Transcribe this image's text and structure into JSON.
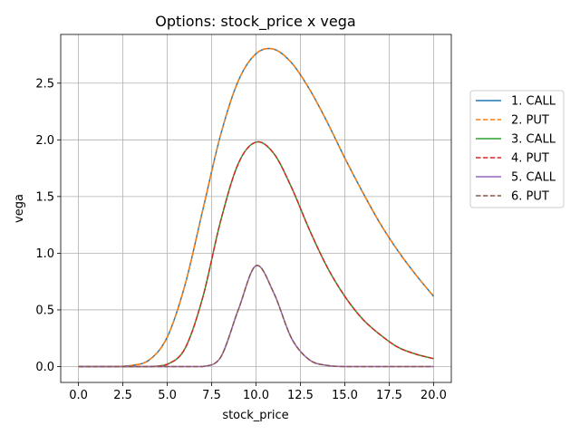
{
  "chart_data": {
    "type": "line",
    "title": "Options: stock_price x vega",
    "xlabel": "stock_price",
    "ylabel": "vega",
    "xlim": [
      -1.0,
      21.0
    ],
    "ylim": [
      -0.14,
      2.93
    ],
    "xticks": [
      0.0,
      2.5,
      5.0,
      7.5,
      10.0,
      12.5,
      15.0,
      17.5,
      20.0
    ],
    "xtick_labels": [
      "0.0",
      "2.5",
      "5.0",
      "7.5",
      "10.0",
      "12.5",
      "15.0",
      "17.5",
      "20.0"
    ],
    "yticks": [
      0.0,
      0.5,
      1.0,
      1.5,
      2.0,
      2.5
    ],
    "ytick_labels": [
      "0.0",
      "0.5",
      "1.0",
      "1.5",
      "2.0",
      "2.5"
    ],
    "grid": true,
    "legend_position": "right, outside plot",
    "x": [
      0,
      1,
      2,
      3,
      4,
      5,
      6,
      7,
      8,
      9,
      10,
      11,
      12,
      13,
      14,
      15,
      16,
      17,
      18,
      19,
      20
    ],
    "series": [
      {
        "name": "1. CALL",
        "color": "#1f77b4",
        "style": "solid",
        "values": [
          0.0,
          0.0,
          0.0,
          0.01,
          0.06,
          0.26,
          0.72,
          1.38,
          2.04,
          2.52,
          2.76,
          2.8,
          2.68,
          2.45,
          2.16,
          1.84,
          1.54,
          1.26,
          1.02,
          0.81,
          0.62
        ]
      },
      {
        "name": "2. PUT",
        "color": "#ff7f0e",
        "style": "dashed",
        "values": [
          0.0,
          0.0,
          0.0,
          0.01,
          0.06,
          0.26,
          0.72,
          1.38,
          2.04,
          2.52,
          2.76,
          2.8,
          2.68,
          2.45,
          2.16,
          1.84,
          1.54,
          1.26,
          1.02,
          0.81,
          0.62
        ]
      },
      {
        "name": "3. CALL",
        "color": "#2ca02c",
        "style": "solid",
        "values": [
          0.0,
          0.0,
          0.0,
          0.0,
          0.0,
          0.02,
          0.16,
          0.61,
          1.28,
          1.79,
          1.98,
          1.88,
          1.58,
          1.21,
          0.88,
          0.62,
          0.42,
          0.28,
          0.17,
          0.11,
          0.07
        ]
      },
      {
        "name": "4. PUT",
        "color": "#d62728",
        "style": "dashed",
        "values": [
          0.0,
          0.0,
          0.0,
          0.0,
          0.0,
          0.02,
          0.16,
          0.61,
          1.28,
          1.79,
          1.98,
          1.88,
          1.58,
          1.21,
          0.88,
          0.62,
          0.42,
          0.28,
          0.17,
          0.11,
          0.07
        ]
      },
      {
        "name": "5. CALL",
        "color": "#9467bd",
        "style": "solid",
        "values": [
          0.0,
          0.0,
          0.0,
          0.0,
          0.0,
          0.0,
          0.0,
          0.0,
          0.08,
          0.5,
          0.89,
          0.65,
          0.25,
          0.06,
          0.01,
          0.0,
          0.0,
          0.0,
          0.0,
          0.0,
          0.0
        ]
      },
      {
        "name": "6. PUT",
        "color": "#8c564b",
        "style": "dashed",
        "values": [
          0.0,
          0.0,
          0.0,
          0.0,
          0.0,
          0.0,
          0.0,
          0.0,
          0.08,
          0.5,
          0.89,
          0.65,
          0.25,
          0.06,
          0.01,
          0.0,
          0.0,
          0.0,
          0.0,
          0.0,
          0.0
        ]
      }
    ]
  }
}
